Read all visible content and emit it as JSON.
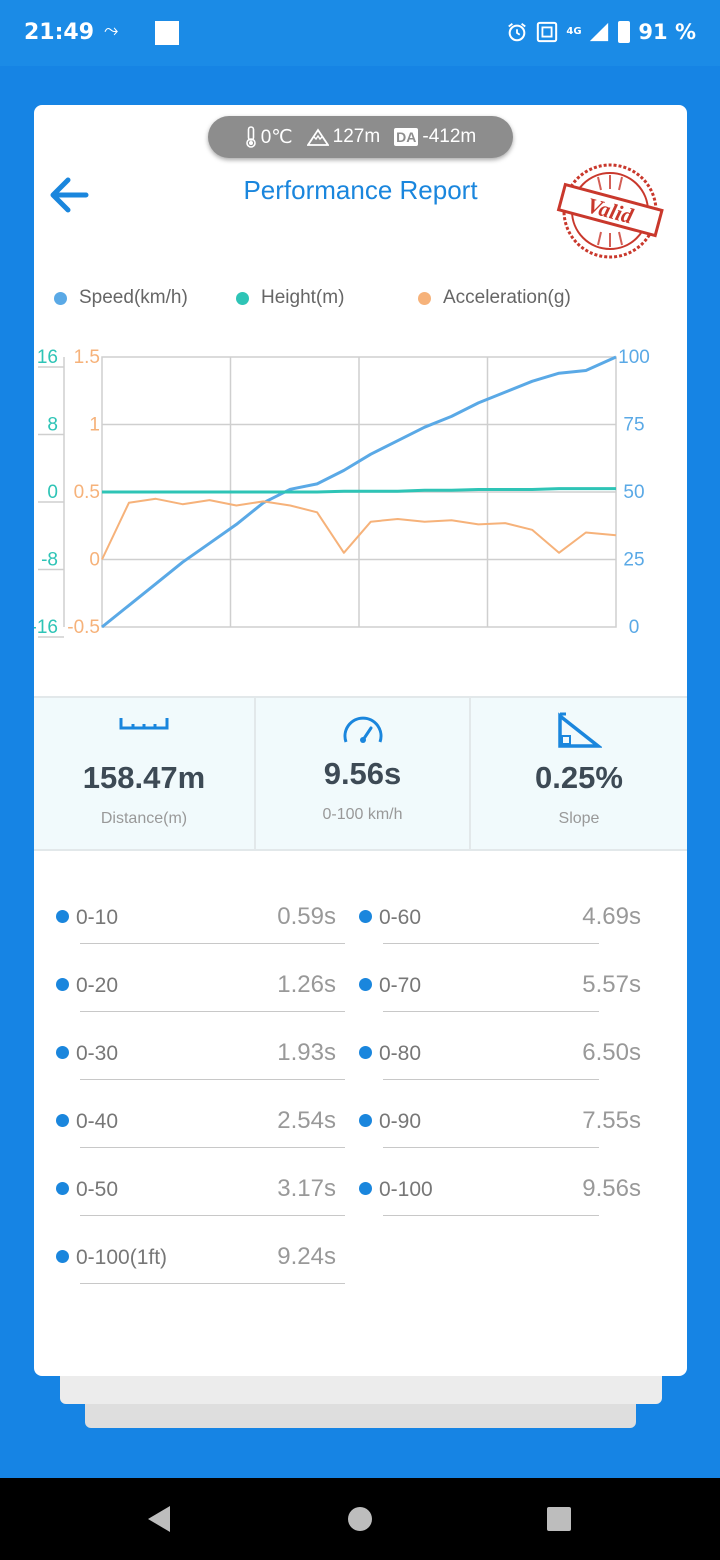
{
  "status_bar": {
    "time": "21:49",
    "battery": "91 %",
    "network": "4G"
  },
  "environment": {
    "temperature": "0℃",
    "altitude": "127m",
    "da_badge": "DA",
    "density_altitude": "-412m"
  },
  "header": {
    "title": "Performance Report",
    "stamp_text": "Valid"
  },
  "legend": [
    {
      "label": "Speed(km/h)",
      "color": "#5aa9e6"
    },
    {
      "label": "Height(m)",
      "color": "#2ec4b6"
    },
    {
      "label": "Acceleration(g)",
      "color": "#f6b27a"
    }
  ],
  "chart_data": {
    "type": "line",
    "x": [
      0,
      0.5,
      1.0,
      1.5,
      2.0,
      2.5,
      3.0,
      3.5,
      4.0,
      4.5,
      5.0,
      5.5,
      6.0,
      6.5,
      7.0,
      7.5,
      8.0,
      8.5,
      9.0,
      9.56
    ],
    "series": [
      {
        "name": "Speed(km/h)",
        "axis": "right",
        "color": "#5aa9e6",
        "values": [
          0,
          8,
          16,
          24,
          31,
          38,
          46,
          51,
          53,
          58,
          64,
          69,
          74,
          78,
          83,
          87,
          91,
          94,
          95,
          100
        ]
      },
      {
        "name": "Height(m)",
        "axis": "left-outer",
        "color": "#2ec4b6",
        "values": [
          0,
          0,
          0,
          0,
          0,
          0,
          0,
          0,
          0,
          0.1,
          0.1,
          0.1,
          0.2,
          0.2,
          0.3,
          0.3,
          0.3,
          0.4,
          0.4,
          0.4
        ]
      },
      {
        "name": "Acceleration(g)",
        "axis": "left-inner",
        "color": "#f6b27a",
        "values": [
          0,
          0.42,
          0.45,
          0.41,
          0.44,
          0.4,
          0.43,
          0.4,
          0.35,
          0.05,
          0.28,
          0.3,
          0.28,
          0.29,
          0.26,
          0.27,
          0.22,
          0.05,
          0.2,
          0.18
        ]
      }
    ],
    "axes": {
      "left_outer": {
        "ticks": [
          "16",
          "8",
          "0",
          "-8",
          "-16"
        ],
        "range": [
          -16,
          16
        ],
        "color": "#2ec4b6"
      },
      "left_inner": {
        "ticks": [
          "1.5",
          "1",
          "0.5",
          "0",
          "-0.5"
        ],
        "range": [
          -0.5,
          1.5
        ],
        "color": "#f6b27a"
      },
      "right": {
        "ticks": [
          "100",
          "75",
          "50",
          "25",
          "0"
        ],
        "range": [
          0,
          100
        ],
        "color": "#5aa9e6"
      }
    },
    "grid": true
  },
  "stats": [
    {
      "value": "158.47m",
      "label": "Distance(m)",
      "icon": "ruler-icon"
    },
    {
      "value": "9.56s",
      "label": "0-100 km/h",
      "icon": "speedometer-icon"
    },
    {
      "value": "0.25%",
      "label": "Slope",
      "icon": "slope-icon"
    }
  ],
  "splits_left": [
    {
      "label": "0-10",
      "value": "0.59s"
    },
    {
      "label": "0-20",
      "value": "1.26s"
    },
    {
      "label": "0-30",
      "value": "1.93s"
    },
    {
      "label": "0-40",
      "value": "2.54s"
    },
    {
      "label": "0-50",
      "value": "3.17s"
    },
    {
      "label": "0-100(1ft)",
      "value": "9.24s"
    }
  ],
  "splits_right": [
    {
      "label": "0-60",
      "value": "4.69s"
    },
    {
      "label": "0-70",
      "value": "5.57s"
    },
    {
      "label": "0-80",
      "value": "6.50s"
    },
    {
      "label": "0-90",
      "value": "7.55s"
    },
    {
      "label": "0-100",
      "value": "9.56s"
    }
  ]
}
